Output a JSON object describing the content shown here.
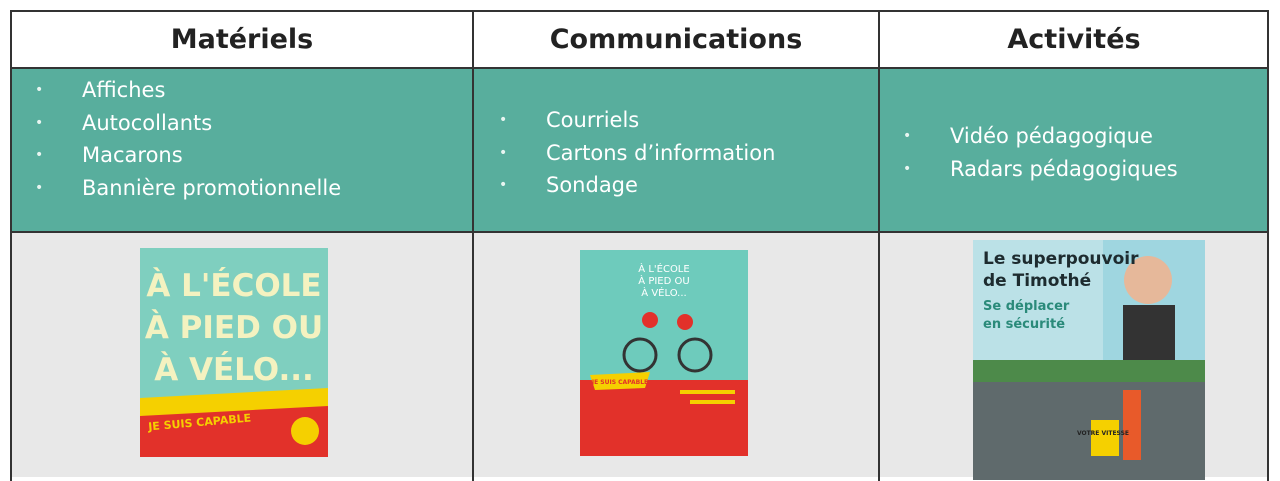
{
  "table": {
    "headers": [
      "Matériels",
      "Communications",
      "Activités"
    ],
    "lists": [
      [
        "Affiches",
        "Autocollants",
        "Macarons",
        "Bannière promotionnelle"
      ],
      [
        "Courriels",
        "Cartons d’information",
        "Sondage"
      ],
      [
        "Vidéo pédagogique",
        "Radars pédagogiques"
      ]
    ],
    "images": [
      {
        "lines": [
          "À L'ÉCOLE",
          "À PIED OU",
          "À VÉLO..."
        ],
        "badge": "JE SUIS CAPABLE"
      },
      {
        "lines": [
          "À L'ÉCOLE",
          "À PIED OU",
          "À VÉLO..."
        ],
        "badge": "JE SUIS CAPABLE"
      },
      {
        "lines": [
          "Le superpouvoir",
          "de Timothé"
        ],
        "sub": [
          "Se déplacer",
          "en sécurité"
        ],
        "badge": "VOTRE VITESSE"
      }
    ]
  }
}
